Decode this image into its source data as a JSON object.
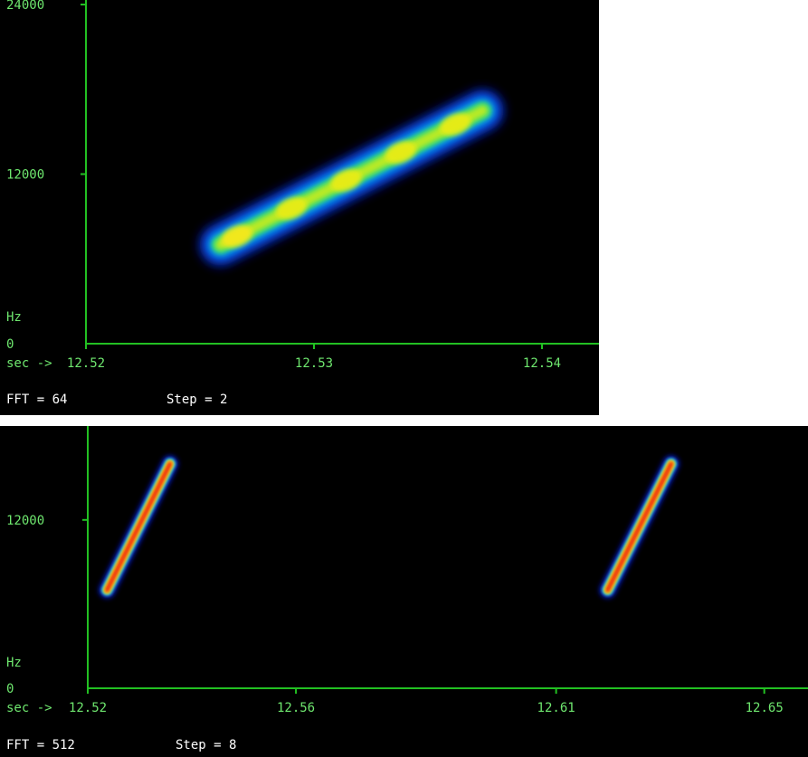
{
  "colors": {
    "axis": "#22c022",
    "tick_label": "#6ee66e",
    "text": "#ffffff",
    "background": "#000000"
  },
  "chart_data": [
    {
      "type": "heatmap",
      "title": "",
      "ylabel": "Hz",
      "xlabel_prefix": "sec ->",
      "xlim": [
        12.52,
        12.5425
      ],
      "ylim": [
        0,
        24000
      ],
      "xticks": [
        12.52,
        12.53,
        12.54
      ],
      "xtick_labels": [
        "12.52",
        "12.53",
        "12.54"
      ],
      "yticks": [
        0,
        12000,
        24000
      ],
      "ytick_labels": [
        "0",
        "12000",
        "24000"
      ],
      "fft_label": "FFT = 64",
      "step_label": "Step = 2",
      "sweeps": [
        {
          "t_start": 12.5259,
          "t_end": 12.5374,
          "f_start": 7000,
          "f_end": 16500
        }
      ]
    },
    {
      "type": "heatmap",
      "title": "",
      "ylabel": "Hz",
      "xlabel_prefix": "sec ->",
      "xlim": [
        12.52,
        12.6584
      ],
      "ylim": [
        0,
        18500
      ],
      "xticks": [
        12.52,
        12.56,
        12.61,
        12.65
      ],
      "xtick_labels": [
        "12.52",
        "12.56",
        "12.61",
        "12.65"
      ],
      "yticks": [
        0,
        12000
      ],
      "ytick_labels": [
        "0",
        "12000"
      ],
      "fft_label": "FFT = 512",
      "step_label": "Step = 8",
      "sweeps": [
        {
          "t_start": 12.5237,
          "t_end": 12.5358,
          "f_start": 7000,
          "f_end": 16000
        },
        {
          "t_start": 12.6199,
          "t_end": 12.6321,
          "f_start": 7000,
          "f_end": 16000
        }
      ]
    }
  ]
}
